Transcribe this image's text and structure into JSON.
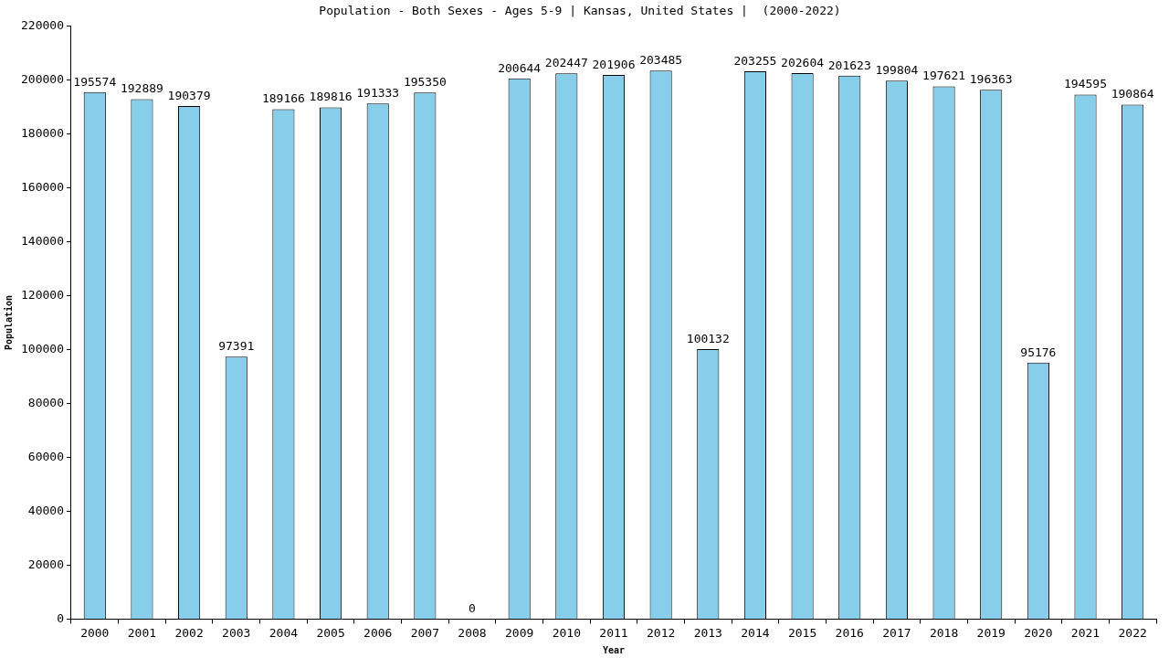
{
  "chart_data": {
    "type": "bar",
    "title": "Population - Both Sexes - Ages 5-9 | Kansas, United States |  (2000-2022)",
    "x_label": "Year",
    "y_label": "Population",
    "categories": [
      "2000",
      "2001",
      "2002",
      "2003",
      "2004",
      "2005",
      "2006",
      "2007",
      "2008",
      "2009",
      "2010",
      "2011",
      "2012",
      "2013",
      "2014",
      "2015",
      "2016",
      "2017",
      "2018",
      "2019",
      "2020",
      "2021",
      "2022"
    ],
    "values": [
      195574,
      192889,
      190379,
      97391,
      189166,
      189816,
      191333,
      195350,
      0,
      200644,
      202447,
      201906,
      203485,
      100132,
      203255,
      202604,
      201623,
      199804,
      197621,
      196363,
      95176,
      194595,
      190864
    ],
    "color": "#87ceeb",
    "ylim": [
      0,
      220000
    ],
    "yticks": [
      0,
      20000,
      40000,
      60000,
      80000,
      100000,
      120000,
      140000,
      160000,
      180000,
      200000,
      220000
    ],
    "grid": false,
    "data_labels": true
  }
}
